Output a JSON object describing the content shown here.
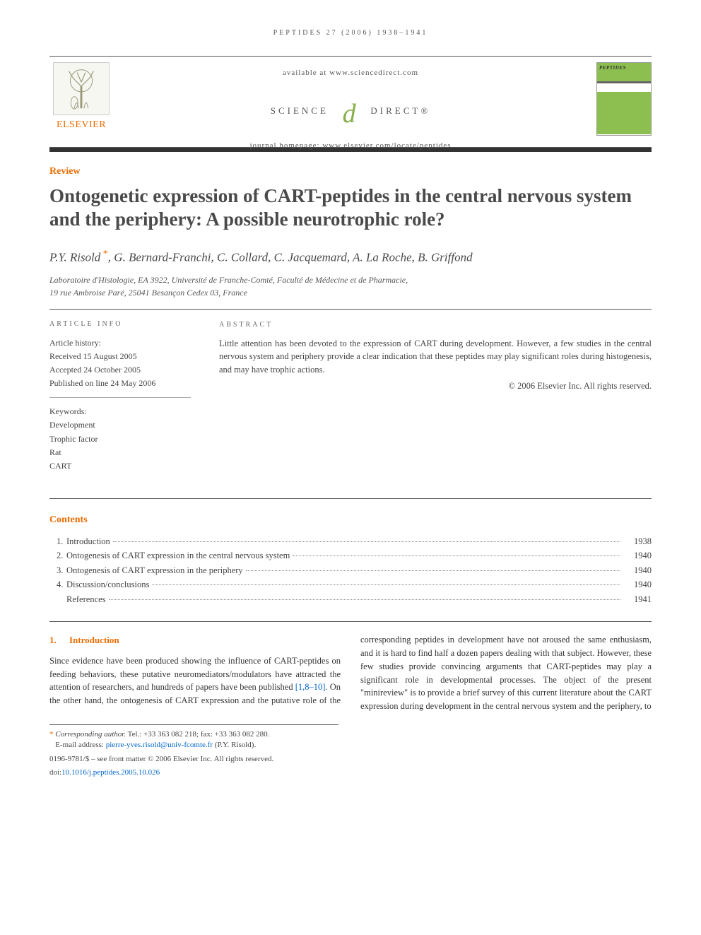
{
  "running_head": "PEPTIDES 27 (2006) 1938–1941",
  "masthead": {
    "available_at": "available at www.sciencedirect.com",
    "sd_left": "SCIENCE",
    "sd_right": "DIRECT®",
    "journal_homepage": "journal homepage: www.elsevier.com/locate/peptides",
    "publisher_name": "ELSEVIER",
    "journal_cover_title": "PEPTIDES"
  },
  "article_type": "Review",
  "title": "Ontogenetic expression of CART-peptides in the central nervous system and the periphery: A possible neurotrophic role?",
  "authors": "P.Y. Risold *, G. Bernard-Franchi, C. Collard, C. Jacquemard, A. La Roche, B. Griffond",
  "affiliation": "Laboratoire d'Histologie, EA 3922, Université de Franche-Comté, Faculté de Médecine et de Pharmacie,\n19 rue Ambroise Paré, 25041 Besançon Cedex 03, France",
  "info": {
    "heading_info": "ARTICLE INFO",
    "heading_abstract": "ABSTRACT",
    "history_label": "Article history:",
    "received": "Received 15 August 2005",
    "accepted": "Accepted 24 October 2005",
    "published": "Published on line 24 May 2006",
    "keywords_label": "Keywords:",
    "keywords": [
      "Development",
      "Trophic factor",
      "Rat",
      "CART"
    ]
  },
  "abstract": "Little attention has been devoted to the expression of CART during development. However, a few studies in the central nervous system and periphery provide a clear indication that these peptides may play significant roles during histogenesis, and may have trophic actions.",
  "copyright_abstract": "© 2006 Elsevier Inc. All rights reserved.",
  "contents_heading": "Contents",
  "toc": [
    {
      "num": "1.",
      "label": "Introduction",
      "page": "1938"
    },
    {
      "num": "2.",
      "label": "Ontogenesis of CART expression in the central nervous system",
      "page": "1940"
    },
    {
      "num": "3.",
      "label": "Ontogenesis of CART expression in the periphery",
      "page": "1940"
    },
    {
      "num": "4.",
      "label": "Discussion/conclusions",
      "page": "1940"
    },
    {
      "num": "",
      "label": "References",
      "page": "1941"
    }
  ],
  "section1": {
    "num": "1.",
    "heading": "Introduction",
    "para_part1": "Since evidence have been produced showing the influence of CART-peptides on feeding behaviors, these putative neuromediators/modulators have attracted the attention of researchers, and hundreds of papers have been published ",
    "refs": "[1,8–10]",
    "para_part2": ". On the other hand, the ontogenesis of CART expression and the putative role of the corresponding peptides in development have not aroused the same enthusiasm, and it is hard to find half a dozen papers dealing with that subject. However, these few studies provide convincing arguments that CART-peptides may play a significant role in developmental processes. The object of the present \"minireview\" is to provide a brief survey of this current literature about the CART expression during development in the central nervous system and the periphery, to"
  },
  "footnotes": {
    "corresponding": "* Corresponding author. Tel.: +33 363 082 218; fax: +33 363 082 280.",
    "email_label": "E-mail address: ",
    "email": "pierre-yves.risold@univ-fcomte.fr",
    "email_attrib": " (P.Y. Risold).",
    "issn_line": "0196-9781/$ – see front matter © 2006 Elsevier Inc. All rights reserved.",
    "doi_label": "doi:",
    "doi": "10.1016/j.peptides.2005.10.026"
  },
  "colors": {
    "accent_orange": "#ed6c00",
    "accent_green": "#8cbf4f",
    "link_blue": "#0066cc",
    "rule_dark": "#333333",
    "text": "#333333"
  }
}
